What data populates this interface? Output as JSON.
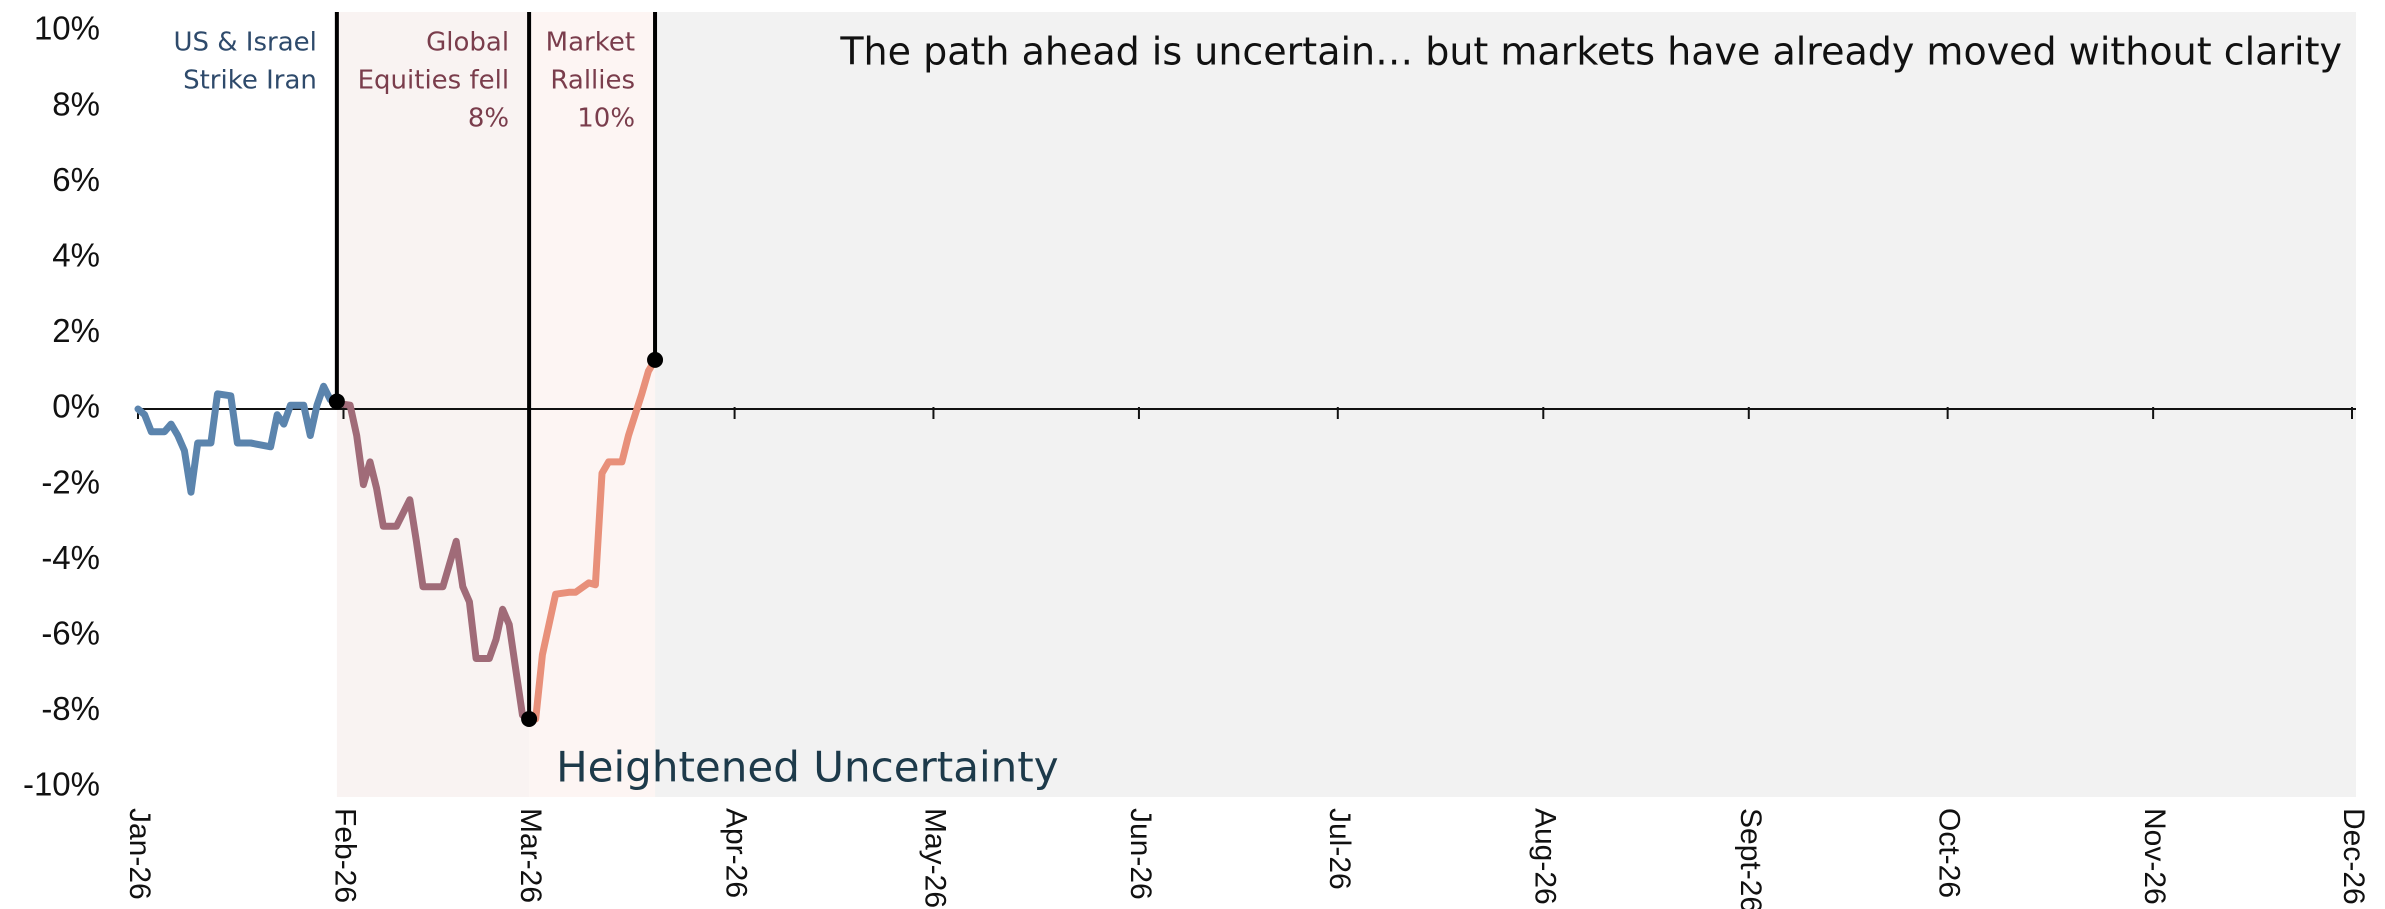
{
  "chart_data": {
    "type": "line",
    "title": "The path ahead is uncertain… but markets have already moved without clarity",
    "xlim": [
      0,
      334
    ],
    "ylim": [
      -10,
      10
    ],
    "yticks": [
      {
        "value": 10,
        "label": "10%"
      },
      {
        "value": 8,
        "label": "8%"
      },
      {
        "value": 6,
        "label": "6%"
      },
      {
        "value": 4,
        "label": "4%"
      },
      {
        "value": 2,
        "label": "2%"
      },
      {
        "value": 0,
        "label": "0%"
      },
      {
        "value": -2,
        "label": "-2%"
      },
      {
        "value": -4,
        "label": "-4%"
      },
      {
        "value": -6,
        "label": "-6%"
      },
      {
        "value": -8,
        "label": "-8%"
      },
      {
        "value": -10,
        "label": "-10%"
      }
    ],
    "xticks": [
      {
        "value": 0,
        "label": "Jan-26"
      },
      {
        "value": 31,
        "label": "Feb-26"
      },
      {
        "value": 59,
        "label": "Mar-26"
      },
      {
        "value": 90,
        "label": "Apr-26"
      },
      {
        "value": 120,
        "label": "May-26"
      },
      {
        "value": 151,
        "label": "Jun-26"
      },
      {
        "value": 181,
        "label": "Jul-26"
      },
      {
        "value": 212,
        "label": "Aug-26"
      },
      {
        "value": 243,
        "label": "Sept-26"
      },
      {
        "value": 273,
        "label": "Oct-26"
      },
      {
        "value": 304,
        "label": "Nov-26"
      },
      {
        "value": 334,
        "label": "Dec-26"
      }
    ],
    "series": [
      {
        "color": "#5b84ad",
        "x": [
          0,
          1,
          2,
          4,
          5,
          6,
          7,
          8,
          9,
          11,
          12,
          14,
          15,
          17,
          20,
          21,
          22,
          23,
          25,
          26,
          27,
          28,
          29,
          30
        ],
        "values": [
          0,
          -0.15,
          -0.6,
          -0.6,
          -0.4,
          -0.7,
          -1.1,
          -2.2,
          -0.9,
          -0.9,
          0.4,
          0.35,
          -0.9,
          -0.9,
          -1.0,
          -0.15,
          -0.4,
          0.1,
          0.1,
          -0.7,
          0.1,
          0.6,
          0.25,
          0.15
        ]
      },
      {
        "color": "#a06b78",
        "x": [
          30,
          32,
          33,
          34,
          35,
          36,
          37,
          39,
          41,
          42,
          43,
          46,
          48,
          49,
          50,
          51,
          53,
          54,
          55,
          56,
          57,
          58,
          59
        ],
        "values": [
          0.15,
          0.1,
          -0.7,
          -2.0,
          -1.4,
          -2.1,
          -3.1,
          -3.1,
          -2.4,
          -3.5,
          -4.7,
          -4.7,
          -3.5,
          -4.7,
          -5.1,
          -6.6,
          -6.6,
          -6.1,
          -5.3,
          -5.7,
          -6.9,
          -8.1,
          -8.2
        ]
      },
      {
        "color": "#e8907a",
        "x": [
          59,
          60,
          61,
          63,
          65,
          66,
          68,
          69,
          70,
          71,
          73,
          74,
          76,
          77,
          78
        ],
        "values": [
          -8.2,
          -8.2,
          -6.5,
          -4.9,
          -4.85,
          -4.85,
          -4.6,
          -4.65,
          -1.7,
          -1.4,
          -1.4,
          -0.7,
          0.4,
          1.0,
          1.3
        ]
      }
    ],
    "annotations": [
      {
        "lines": [
          "US & Israel",
          "Strike Iran"
        ],
        "x": 30,
        "y": 0.2,
        "color": "#2e4a6b",
        "shade": "#f9f3f2"
      },
      {
        "lines": [
          "Global",
          "Equities fell",
          "8%"
        ],
        "x": 59,
        "y": -8.2,
        "color": "#7a3d4c",
        "shade": "#fdf5f3"
      },
      {
        "lines": [
          "Market",
          "Rallies",
          "10%"
        ],
        "x": 78,
        "y": 1.3,
        "color": "#7a3d4c",
        "shade": "#f2f2f2"
      }
    ],
    "region_label": "Heightened Uncertainty"
  }
}
